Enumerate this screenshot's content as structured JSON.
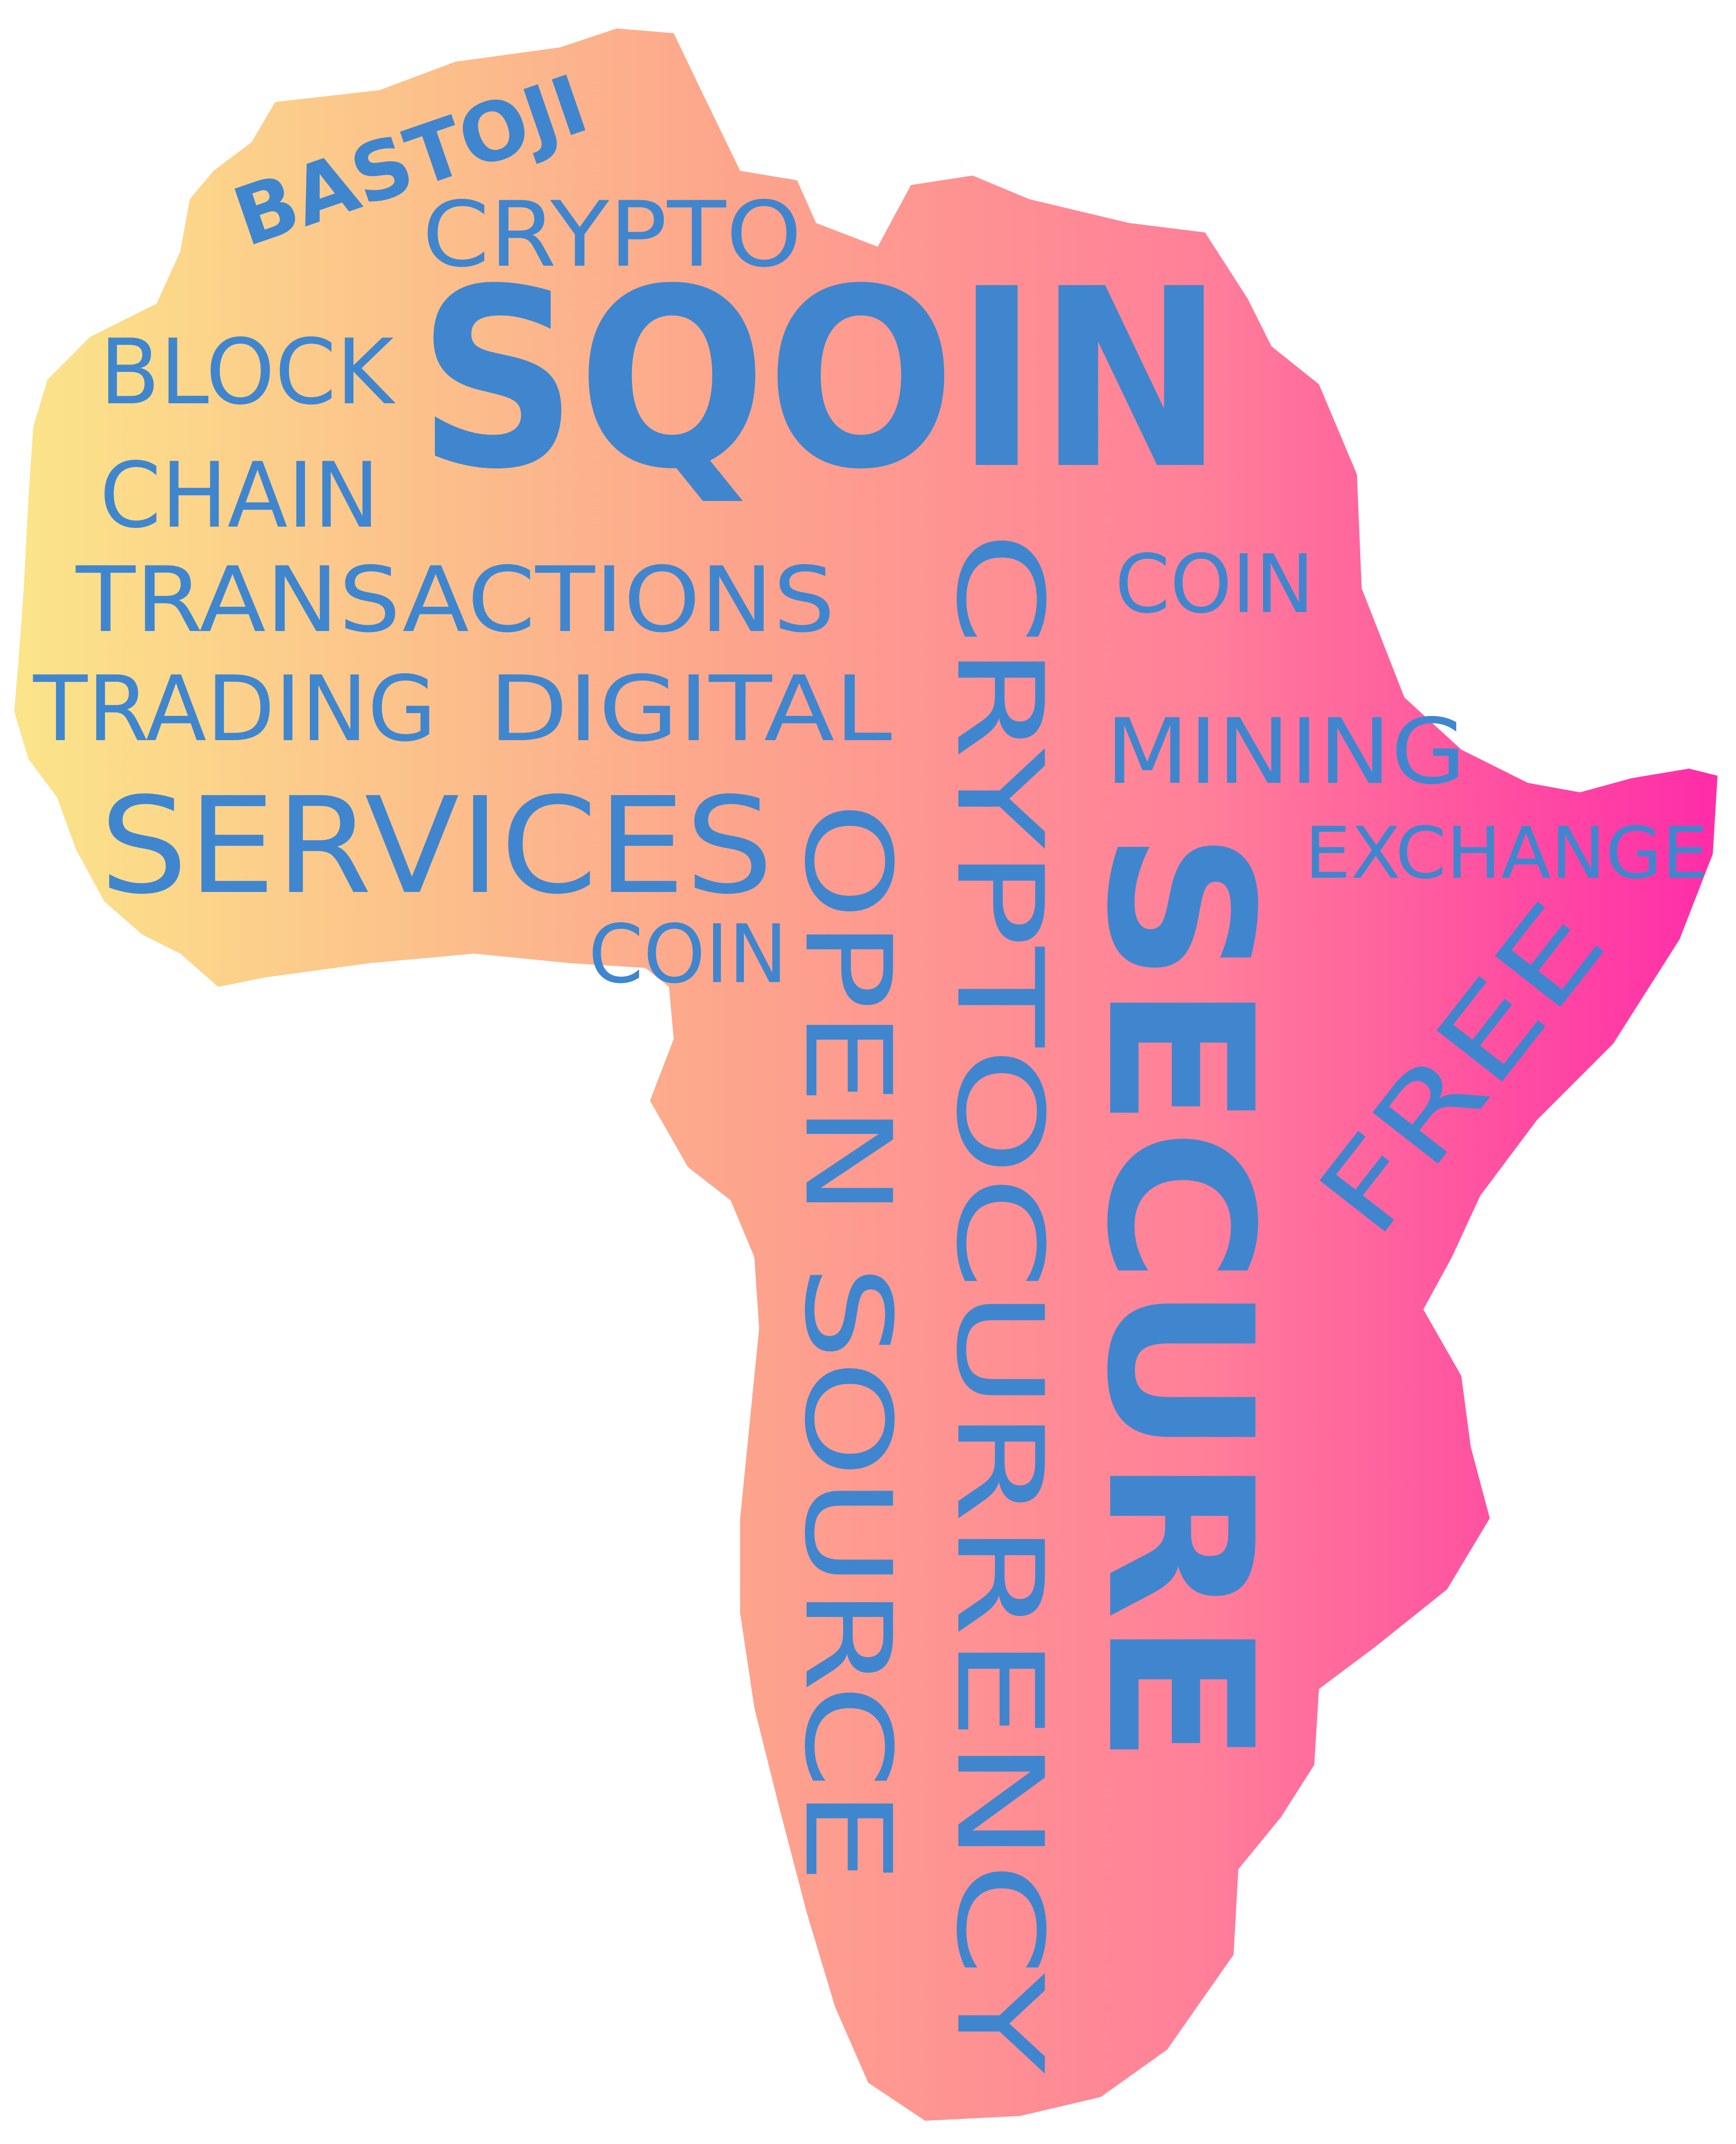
{
  "colors": {
    "text": "#3f86cf",
    "gradient_left": "#fbe58a",
    "gradient_mid": "#fd9b8c",
    "gradient_right": "#ff2ca8",
    "background": "#ffffff"
  },
  "words": {
    "bastoji": "BASTOJI",
    "crypto_top": "CRYPTO",
    "sqoin": "SQOIN",
    "block": "BLOCK",
    "chain": "CHAIN",
    "transactions": "TRANSACTIONS",
    "trading": "TRADING",
    "digital": "DIGITAL",
    "services": "SERVICES",
    "coin_small": "COIN",
    "coin_right": "COIN",
    "mining": "MINING",
    "exchange": "EXCHANGE",
    "open_source": "OPEN SOURCE",
    "cryptocurrency": "CRYPTOCURRENCY",
    "secure": "SECURE",
    "free": "FREE"
  }
}
